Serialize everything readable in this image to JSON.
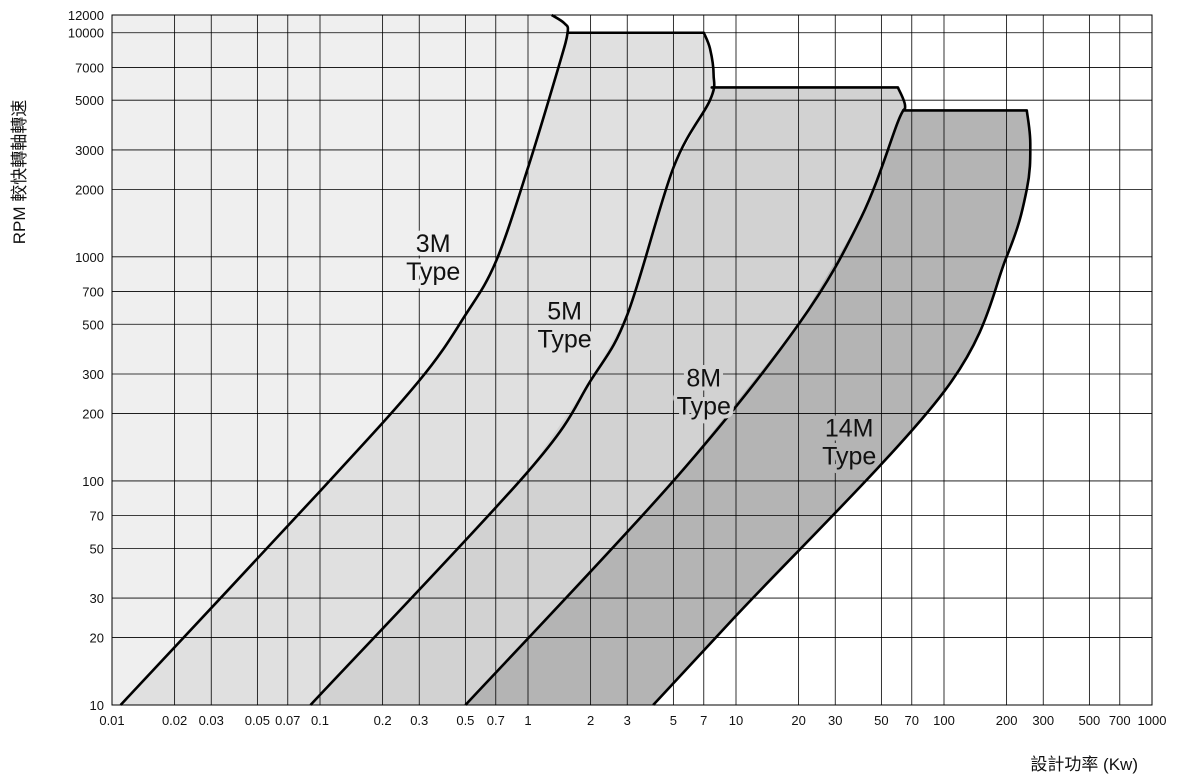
{
  "chart_data": {
    "type": "area",
    "title": "",
    "xlabel": "設計功率 (Kw)",
    "ylabel": "RPM 較快轉軸轉速",
    "xscale": "log",
    "yscale": "log",
    "xlim": [
      0.01,
      1000
    ],
    "ylim": [
      10,
      12000
    ],
    "grid": true,
    "x_ticks": [
      0.01,
      0.02,
      0.03,
      0.05,
      0.07,
      0.1,
      0.2,
      0.3,
      0.5,
      0.7,
      1,
      2,
      3,
      5,
      7,
      10,
      20,
      30,
      50,
      70,
      100,
      200,
      300,
      500,
      700,
      1000
    ],
    "x_tick_labels": [
      "0.01",
      "0.02",
      "0.03",
      "0.05",
      "0.07",
      "0.1",
      "0.2",
      "0.3",
      "0.5",
      "0.7",
      "1",
      "2",
      "3",
      "5",
      "7",
      "10",
      "20",
      "30",
      "50",
      "70",
      "100",
      "200",
      "300",
      "500",
      "700",
      "1000"
    ],
    "y_ticks": [
      10,
      20,
      30,
      50,
      70,
      100,
      200,
      300,
      500,
      700,
      1000,
      2000,
      3000,
      5000,
      7000,
      10000,
      12000
    ],
    "y_tick_labels": [
      "10",
      "20",
      "30",
      "50",
      "70",
      "100",
      "200",
      "300",
      "500",
      "700",
      "1000",
      "2000",
      "3000",
      "5000",
      "7000",
      "10000",
      "12000"
    ],
    "series": [
      {
        "name": "3M Type",
        "label_lines": [
          "3M",
          "Type"
        ],
        "label_at": [
          0.35,
          1000
        ],
        "fill": "#efefef",
        "boundary": [
          [
            0.011,
            10
          ],
          [
            0.1,
            90
          ],
          [
            0.3,
            280
          ],
          [
            0.5,
            550
          ],
          [
            0.7,
            950
          ],
          [
            1.0,
            2500
          ],
          [
            1.4,
            7000
          ],
          [
            1.55,
            10000
          ],
          [
            1.5,
            11000
          ],
          [
            1.3,
            12000
          ]
        ]
      },
      {
        "name": "5M Type",
        "label_lines": [
          "5M",
          "Type"
        ],
        "label_at": [
          1.5,
          500
        ],
        "fill": "#e0e0e0",
        "cap_rpm": 10000,
        "boundary": [
          [
            0.09,
            10
          ],
          [
            1.0,
            110
          ],
          [
            2.0,
            280
          ],
          [
            3.0,
            550
          ],
          [
            5.0,
            2500
          ],
          [
            7.5,
            5000
          ],
          [
            7.8,
            6500
          ],
          [
            7.5,
            8500
          ],
          [
            7.0,
            10000
          ]
        ]
      },
      {
        "name": "8M Type",
        "label_lines": [
          "8M",
          "Type"
        ],
        "label_at": [
          7.0,
          250
        ],
        "fill": "#d2d2d2",
        "cap_rpm": 5700,
        "boundary": [
          [
            0.5,
            10
          ],
          [
            5.0,
            100
          ],
          [
            20,
            500
          ],
          [
            40,
            1500
          ],
          [
            60,
            4000
          ],
          [
            65,
            4700
          ],
          [
            60,
            5700
          ]
        ]
      },
      {
        "name": "14M Type",
        "label_lines": [
          "14M",
          "Type"
        ],
        "label_at": [
          35,
          150
        ],
        "fill": "#b4b4b4",
        "cap_rpm": 4500,
        "boundary": [
          [
            4.0,
            10
          ],
          [
            10,
            25
          ],
          [
            100,
            250
          ],
          [
            200,
            1000
          ],
          [
            250,
            2000
          ],
          [
            260,
            3200
          ],
          [
            250,
            4500
          ]
        ]
      }
    ]
  }
}
